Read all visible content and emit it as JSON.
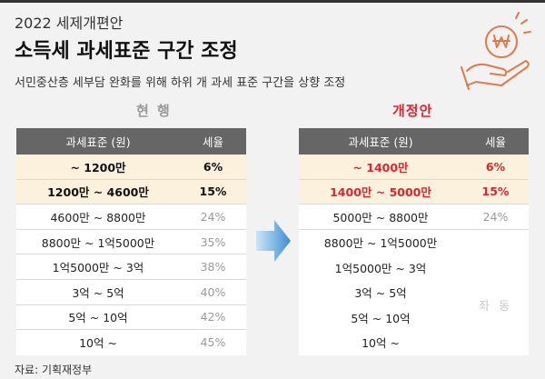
{
  "kicker": "2022 세제개편안",
  "title": "소득세 과세표준 구간 조정",
  "subtitle": "서민중산층 세부담 완화를 위해 하위 개 과세 표준 구간을 상향 조정",
  "current": {
    "header": "현 행",
    "col_bracket": "과세표준 (원)",
    "col_rate": "세율",
    "rows": [
      {
        "bracket": "~ 1200만",
        "rate": "6%"
      },
      {
        "bracket": "1200만 ~ 4600만",
        "rate": "15%"
      },
      {
        "bracket": "4600만 ~ 8800만",
        "rate": "24%"
      },
      {
        "bracket": "8800만 ~ 1억5000만",
        "rate": "35%"
      },
      {
        "bracket": "1억5000만 ~ 3억",
        "rate": "38%"
      },
      {
        "bracket": "3억 ~ 5억",
        "rate": "40%"
      },
      {
        "bracket": "5억 ~ 10억",
        "rate": "42%"
      },
      {
        "bracket": "10억 ~",
        "rate": "45%"
      }
    ]
  },
  "revised": {
    "header": "개정안",
    "col_bracket": "과세표준 (원)",
    "col_rate": "세율",
    "rows": [
      {
        "bracket": "~ 1400만",
        "rate": "6%"
      },
      {
        "bracket": "1400만 ~ 5000만",
        "rate": "15%"
      },
      {
        "bracket": "5000만 ~ 8800만",
        "rate": "24%"
      },
      {
        "bracket": "8800만 ~ 1억5000만",
        "rate": ""
      },
      {
        "bracket": "1억5000만 ~ 3억",
        "rate": ""
      },
      {
        "bracket": "3억 ~ 5억",
        "rate": ""
      },
      {
        "bracket": "5억 ~ 10억",
        "rate": ""
      },
      {
        "bracket": "10억 ~",
        "rate": ""
      }
    ],
    "same_label": "좌 동"
  },
  "source": "자료: 기획재정부",
  "colors": {
    "accent": "#d7282f",
    "highlight_row": "#fbf1dd",
    "header_bg": "#666666",
    "arrow": "#3a8fd0"
  },
  "icons": {
    "top_right": "hand-holding-won-coin-icon",
    "middle": "right-arrow-icon"
  }
}
